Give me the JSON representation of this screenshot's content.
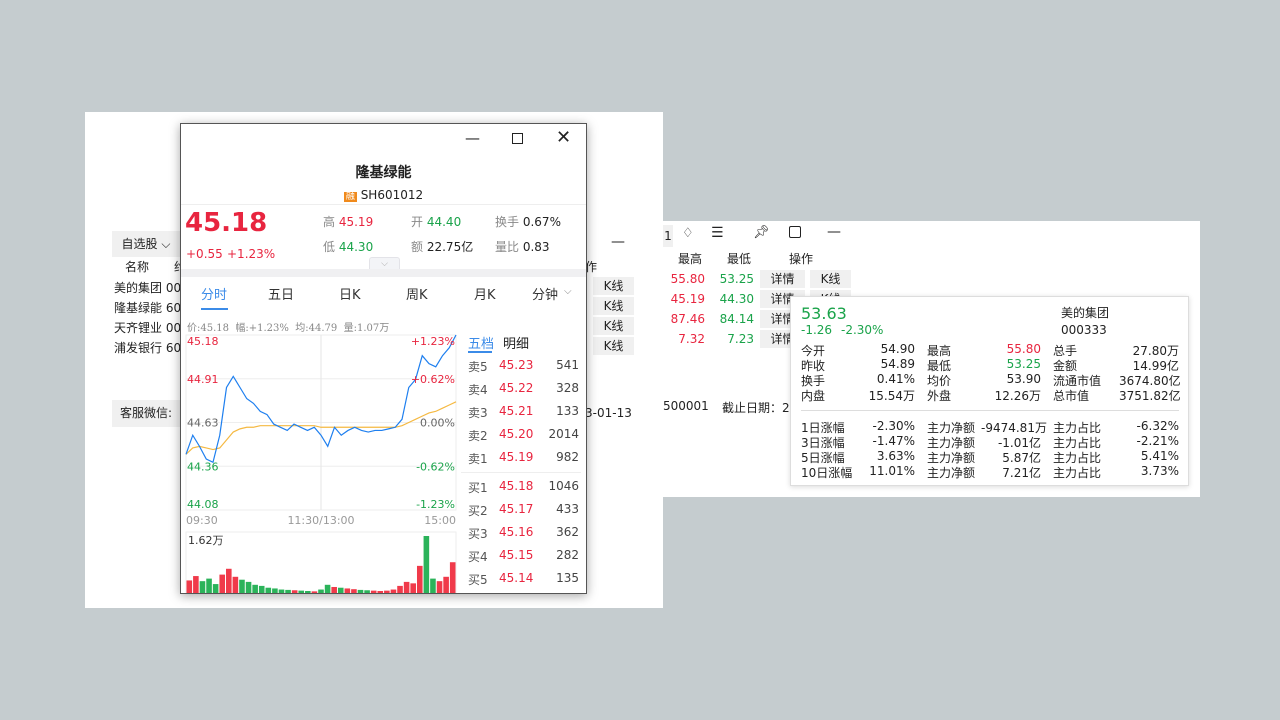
{
  "back_window": {
    "watchlist_label": "自选股",
    "col_name": "名称",
    "col_code_partial": "约",
    "col_action_partial": "作",
    "rows": [
      {
        "name": "美的集团",
        "code": "00"
      },
      {
        "name": "隆基绿能",
        "code": "60"
      },
      {
        "name": "天齐锂业",
        "code": "00"
      },
      {
        "name": "浦发银行",
        "code": "60"
      }
    ],
    "kline_label": "K线",
    "service_label": "客服微信:",
    "date_partial": "3-01-13",
    "minimize": "—"
  },
  "right_window": {
    "tab_partial": "1",
    "col_high": "最高",
    "col_low": "最低",
    "col_action": "操作",
    "detail_label": "详情",
    "kline_label": "K线",
    "rows": [
      {
        "high": "55.80",
        "low": "53.25"
      },
      {
        "high": "45.19",
        "low": "44.30"
      },
      {
        "high": "87.46",
        "low": "84.14"
      },
      {
        "high": "7.32",
        "low": "7.23"
      }
    ],
    "footer_code": "500001",
    "footer_date_label": "截止日期：2"
  },
  "popup": {
    "title": "隆基绿能",
    "badge": "融",
    "code": "SH601012",
    "price": "45.18",
    "change": "+0.55",
    "change_pct": "+1.23%",
    "stats": {
      "high_label": "高",
      "high": "45.19",
      "open_label": "开",
      "open": "44.40",
      "turnover_label": "换手",
      "turnover": "0.67%",
      "low_label": "低",
      "low": "44.30",
      "amount_label": "额",
      "amount": "22.75亿",
      "ratio_label": "量比",
      "ratio": "0.83"
    },
    "tabs": [
      "分时",
      "五日",
      "日K",
      "周K",
      "月K",
      "分钟"
    ],
    "info": {
      "price": "价:45.18",
      "pct": "幅:+1.23%",
      "avg": "均:44.79",
      "vol": "量:1.07万"
    },
    "book_tabs": [
      "五档",
      "明细"
    ],
    "asks": [
      {
        "label": "卖5",
        "price": "45.23",
        "vol": "541"
      },
      {
        "label": "卖4",
        "price": "45.22",
        "vol": "328"
      },
      {
        "label": "卖3",
        "price": "45.21",
        "vol": "133"
      },
      {
        "label": "卖2",
        "price": "45.20",
        "vol": "2014"
      },
      {
        "label": "卖1",
        "price": "45.19",
        "vol": "982"
      }
    ],
    "bids": [
      {
        "label": "买1",
        "price": "45.18",
        "vol": "1046"
      },
      {
        "label": "买2",
        "price": "45.17",
        "vol": "433"
      },
      {
        "label": "买3",
        "price": "45.16",
        "vol": "362"
      },
      {
        "label": "买4",
        "price": "45.15",
        "vol": "282"
      },
      {
        "label": "买5",
        "price": "45.14",
        "vol": "135"
      }
    ]
  },
  "chart_data": {
    "type": "line",
    "y_left_ticks": [
      "45.18",
      "44.91",
      "44.63",
      "44.36",
      "44.08"
    ],
    "y_right_ticks": [
      "+1.23%",
      "+0.62%",
      "0.00%",
      "-0.62%",
      "-1.23%"
    ],
    "x_ticks": [
      "09:30",
      "11:30/13:00",
      "15:00"
    ],
    "ylim": [
      44.08,
      45.18
    ],
    "pre_close": 44.63,
    "volume_max_label": "1.62万",
    "volume_max": 16200,
    "price_color": "#1e7fef",
    "avg_color": "#f5b942",
    "price": [
      44.43,
      44.55,
      44.48,
      44.4,
      44.38,
      44.55,
      44.85,
      44.92,
      44.85,
      44.78,
      44.75,
      44.7,
      44.68,
      44.62,
      44.6,
      44.58,
      44.62,
      44.6,
      44.58,
      44.6,
      44.55,
      44.48,
      44.6,
      44.55,
      44.58,
      44.6,
      44.58,
      44.57,
      44.58,
      44.58,
      44.59,
      44.6,
      44.65,
      44.85,
      44.9,
      45.05,
      45.0,
      44.98,
      45.05,
      45.1,
      45.18
    ],
    "avg": [
      44.43,
      44.47,
      44.48,
      44.47,
      44.46,
      44.47,
      44.52,
      44.57,
      44.59,
      44.6,
      44.6,
      44.61,
      44.61,
      44.61,
      44.61,
      44.61,
      44.61,
      44.61,
      44.61,
      44.61,
      44.6,
      44.6,
      44.6,
      44.6,
      44.6,
      44.6,
      44.6,
      44.6,
      44.6,
      44.6,
      44.6,
      44.6,
      44.61,
      44.63,
      44.65,
      44.67,
      44.69,
      44.7,
      44.72,
      44.74,
      44.76
    ],
    "volume": [
      4000,
      5200,
      3800,
      4500,
      3000,
      5600,
      7200,
      5000,
      4200,
      3600,
      2800,
      2500,
      2000,
      1800,
      1500,
      1400,
      1300,
      1200,
      1100,
      1000,
      1500,
      2800,
      2200,
      2000,
      1800,
      1600,
      1400,
      1300,
      1200,
      1100,
      1200,
      1500,
      2500,
      3600,
      3200,
      8000,
      16200,
      4500,
      3800,
      5000,
      9000
    ]
  },
  "tooltip": {
    "price": "53.63",
    "change": "-1.26",
    "change_pct": "-2.30%",
    "name": "美的集团",
    "code": "000333",
    "grid": [
      [
        "今开",
        "54.90",
        "最高",
        "55.80",
        "总手",
        "27.80万"
      ],
      [
        "昨收",
        "54.89",
        "最低",
        "53.25",
        "金额",
        "14.99亿"
      ],
      [
        "换手",
        "0.41%",
        "均价",
        "53.90",
        "流通市值",
        "3674.80亿"
      ],
      [
        "内盘",
        "15.54万",
        "外盘",
        "12.26万",
        "总市值",
        "3751.82亿"
      ]
    ],
    "flows": [
      [
        "1日涨幅",
        "-2.30%",
        "主力净额",
        "-9474.81万",
        "主力占比",
        "-6.32%"
      ],
      [
        "3日涨幅",
        "-1.47%",
        "主力净额",
        "-1.01亿",
        "主力占比",
        "-2.21%"
      ],
      [
        "5日涨幅",
        "3.63%",
        "主力净额",
        "5.87亿",
        "主力占比",
        "5.41%"
      ],
      [
        "10日涨幅",
        "11.01%",
        "主力净额",
        "7.21亿",
        "主力占比",
        "3.73%"
      ]
    ]
  }
}
